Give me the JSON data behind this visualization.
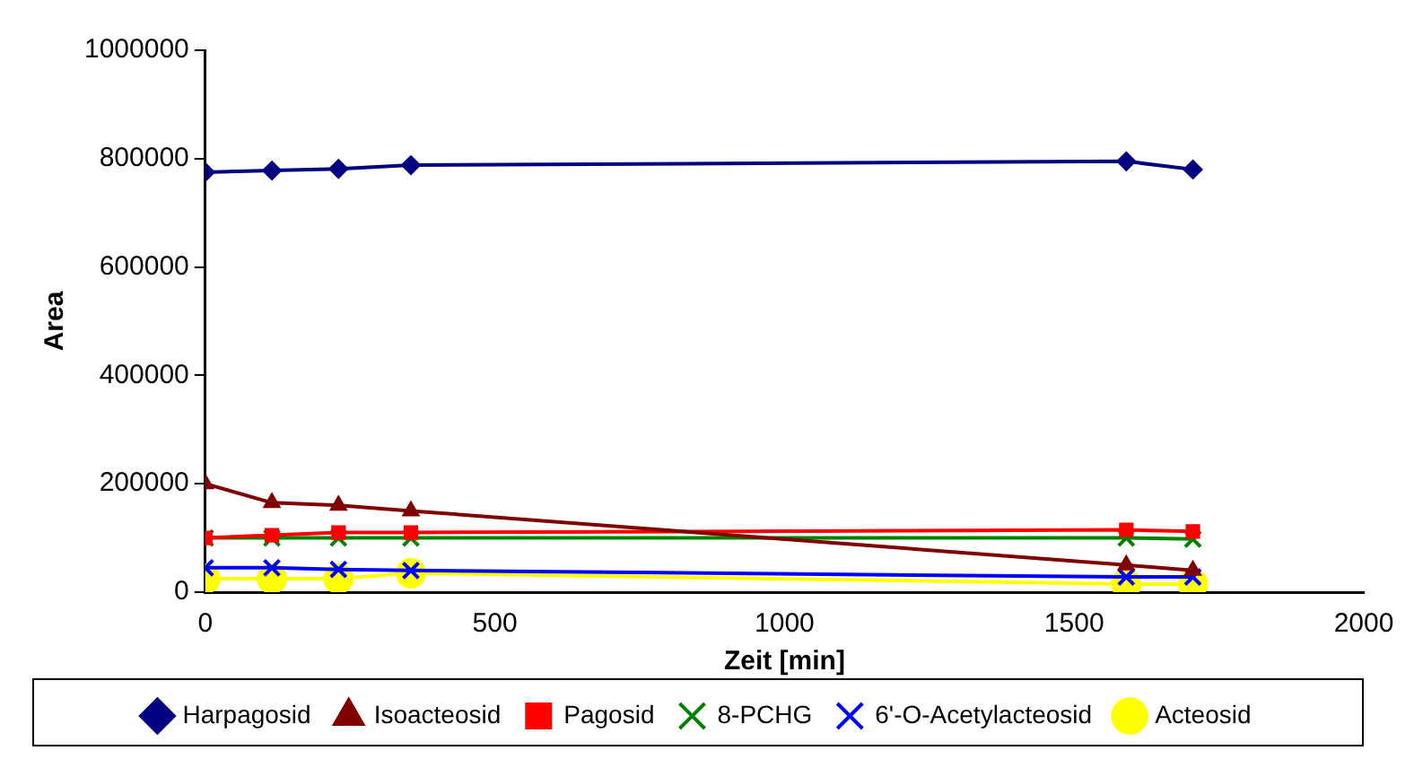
{
  "chart_data": {
    "type": "line",
    "xlabel": "Zeit [min]",
    "ylabel": "Area",
    "x": [
      0,
      115,
      230,
      355,
      1590,
      1705
    ],
    "series": [
      {
        "name": "Harpagosid",
        "color": "#000080",
        "marker": "diamond",
        "values": [
          775000,
          778000,
          781000,
          788000,
          795000,
          780000
        ]
      },
      {
        "name": "Isoacteosid",
        "color": "#800000",
        "marker": "triangle",
        "values": [
          200000,
          165000,
          160000,
          150000,
          50000,
          40000
        ]
      },
      {
        "name": "Pagosid",
        "color": "#ff0000",
        "marker": "square",
        "values": [
          100000,
          105000,
          110000,
          110000,
          115000,
          112000
        ]
      },
      {
        "name": "8-PCHG",
        "color": "#008000",
        "marker": "cross",
        "values": [
          100000,
          100000,
          100000,
          100000,
          100000,
          98000
        ]
      },
      {
        "name": "6'-O-Acetylacteosid",
        "color": "#0000ff",
        "marker": "cross",
        "values": [
          45000,
          45000,
          42000,
          40000,
          28000,
          28000
        ]
      },
      {
        "name": "Acteosid",
        "color": "#ffff00",
        "marker": "circle",
        "values": [
          25000,
          25000,
          25000,
          35000,
          15000,
          15000
        ]
      }
    ],
    "xlim": [
      0,
      2000
    ],
    "xticks": [
      0,
      500,
      1000,
      1500,
      2000
    ],
    "ylim": [
      0,
      1000000
    ],
    "yticks": [
      0,
      200000,
      400000,
      600000,
      800000,
      1000000
    ],
    "grid": false,
    "legend": "bottom",
    "line_style": "solid"
  }
}
